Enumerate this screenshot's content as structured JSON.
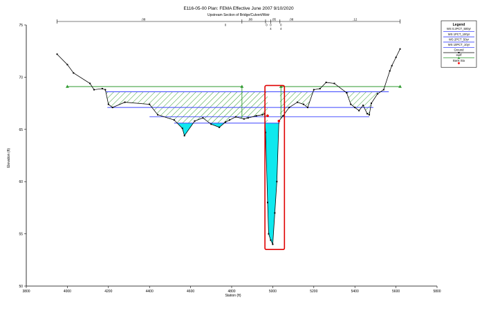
{
  "chart_data": {
    "type": "line",
    "title": "E116-05-00     Plan: FEMA Effective June 2007     9/10/2020",
    "subtitle": "Upstream Section of Bridge/Culvert/Weir",
    "xlabel": "Station (ft)",
    "ylabel": "Elevation (ft)",
    "xlim": [
      3800,
      5800
    ],
    "ylim": [
      50,
      75
    ],
    "x_ticks": [
      3800,
      4000,
      4200,
      4400,
      4600,
      4800,
      5000,
      5200,
      5400,
      5600,
      5800
    ],
    "y_ticks": [
      50,
      55,
      60,
      65,
      70,
      75
    ],
    "grid": false,
    "legend_position": "top-right",
    "colors": {
      "ground": "#000000",
      "ws_line": "#3b44ff",
      "water_fill": "#10e8ee",
      "ineff": "#2e9a2e",
      "bank_sta": "#ff0000",
      "highlight_box": "#e00000"
    },
    "legend": {
      "title": "Legend",
      "entries": [
        "WS  0.2PCT_500yr",
        "WS  1PCT_100yr",
        "WS  2PCT_50yr",
        "WS  10PCT_10yr",
        "Ground",
        "Ineff",
        "Bank Sta"
      ]
    },
    "top_labels": {
      "values": [
        ".08",
        ".08",
        ".05",
        ".08",
        ".12"
      ],
      "bar_ticks": [
        {
          "top": "0",
          "bottom": ""
        },
        {
          "top": "0",
          "bottom": ""
        },
        {
          "top": "0",
          "bottom": "4"
        },
        {
          "top": "0",
          "bottom": "4"
        }
      ]
    },
    "series": [
      {
        "name": "Ground",
        "x": [
          3950,
          4000,
          4030,
          4110,
          4130,
          4170,
          4185,
          4200,
          4220,
          4280,
          4400,
          4440,
          4520,
          4560,
          4570,
          4620,
          4660,
          4700,
          4740,
          4770,
          4790,
          4820,
          4860,
          4880,
          4920,
          4950,
          4960,
          4965,
          4975,
          4980,
          4990,
          5000,
          5010,
          5020,
          5030,
          5050,
          5080,
          5120,
          5150,
          5170,
          5200,
          5230,
          5260,
          5300,
          5360,
          5380,
          5400,
          5420,
          5440,
          5460,
          5470,
          5480,
          5510,
          5540,
          5570,
          5580,
          5600,
          5620
        ],
        "y": [
          72.2,
          71.2,
          70.4,
          69.4,
          68.8,
          68.9,
          68.8,
          67.4,
          67.1,
          67.6,
          67.4,
          66.4,
          65.9,
          65.1,
          64.4,
          65.8,
          66.1,
          65.5,
          65.2,
          65.7,
          65.9,
          66.2,
          66.0,
          66.1,
          66.3,
          66.4,
          66.5,
          64.7,
          58.0,
          55.0,
          54.4,
          54.0,
          57.0,
          60.0,
          65.8,
          66.3,
          67.1,
          67.6,
          67.4,
          67.1,
          68.8,
          68.9,
          69.5,
          69.4,
          68.5,
          67.4,
          67.1,
          66.8,
          67.3,
          66.5,
          66.4,
          67.5,
          68.4,
          68.8,
          70.6,
          71.1,
          71.9,
          72.7
        ]
      },
      {
        "name": "WS  0.2PCT_500yr",
        "x": [
          4187,
          5565
        ],
        "y": [
          68.6,
          68.6
        ]
      },
      {
        "name": "WS  1PCT_100yr",
        "x": [
          4195,
          5490
        ],
        "y": [
          67.1,
          67.1
        ]
      },
      {
        "name": "WS  2PCT_50yr",
        "x": [
          4400,
          5470
        ],
        "y": [
          66.2,
          66.2
        ]
      },
      {
        "name": "WS  10PCT_10yr",
        "x": [
          4520,
          5033
        ],
        "y": [
          65.6,
          65.6
        ]
      },
      {
        "name": "Ineff",
        "x": [
          4000,
          4850
        ],
        "y": [
          69.1,
          69.1
        ]
      },
      {
        "name": "Ineff",
        "x": [
          5040,
          5620
        ],
        "y": [
          69.1,
          69.1
        ]
      },
      {
        "name": "Bank Sta",
        "x": [
          4975,
          5030
        ],
        "y": [
          66.3,
          65.8
        ]
      }
    ],
    "ineff_points": [
      {
        "x": 4000,
        "y": 69.1
      },
      {
        "x": 4850,
        "y": 69.1
      },
      {
        "x": 5040,
        "y": 69.1
      },
      {
        "x": 5620,
        "y": 69.1
      }
    ],
    "highlight": {
      "x": [
        4962,
        5057
      ],
      "y": [
        53.5,
        69.2
      ]
    }
  }
}
